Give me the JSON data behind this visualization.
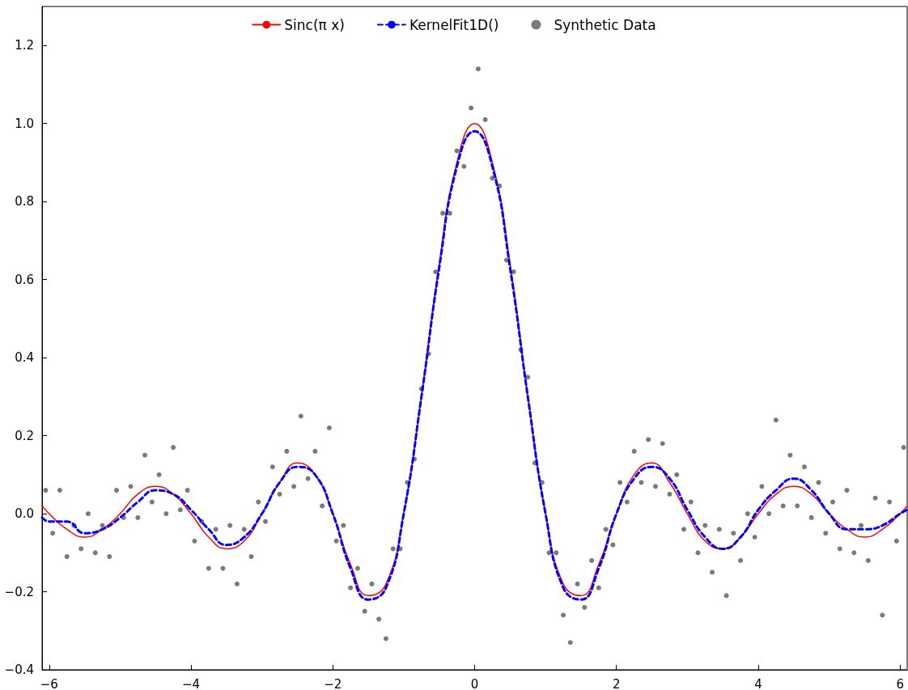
{
  "chart_data": {
    "type": "line",
    "xlim": [
      -6.1,
      6.1
    ],
    "xticks": [
      {
        "value": -6,
        "label": "−6"
      },
      {
        "value": -4,
        "label": "−4"
      },
      {
        "value": -2,
        "label": "−2"
      },
      0,
      2,
      4,
      6
    ],
    "ylim": [
      -0.4,
      1.3
    ],
    "yticks": [
      {
        "value": -0.4,
        "label": "−0.4"
      },
      {
        "value": -0.2,
        "label": "−0.2"
      },
      {
        "value": 0,
        "label": "0.0"
      },
      0.2,
      0.4,
      0.6,
      0.8,
      {
        "value": 1,
        "label": "1.0"
      },
      1.2
    ],
    "grid": false,
    "legend": "top",
    "series": [
      {
        "name": "Sinc(π x)",
        "color": "#ff0000",
        "line_style": "solid",
        "x": [
          -6.1,
          -6,
          -5.75,
          -5.5,
          -5.25,
          -5,
          -4.75,
          -4.5,
          -4.25,
          -4,
          -3.75,
          -3.5,
          -3.25,
          -3,
          -2.75,
          -2.5,
          -2.25,
          -2,
          -1.75,
          -1.5,
          -1.25,
          -1,
          -0.75,
          -0.5,
          -0.25,
          0,
          0.25,
          0.5,
          0.75,
          1,
          1.25,
          1.5,
          1.75,
          2,
          2.25,
          2.5,
          2.75,
          3,
          3.25,
          3.5,
          3.75,
          4,
          4.25,
          4.5,
          4.75,
          5,
          5.25,
          5.5,
          5.75,
          6,
          6.1
        ],
        "values": [
          0.02,
          0,
          -0.04,
          -0.06,
          -0.04,
          0,
          0.05,
          0.07,
          0.05,
          0,
          -0.06,
          -0.09,
          -0.07,
          0,
          0.08,
          0.13,
          0.1,
          0,
          -0.13,
          -0.21,
          -0.18,
          0,
          0.3,
          0.64,
          0.9,
          1,
          0.9,
          0.64,
          0.3,
          0,
          -0.18,
          -0.21,
          -0.13,
          0,
          0.1,
          0.13,
          0.08,
          0,
          -0.07,
          -0.09,
          -0.06,
          0,
          0.05,
          0.07,
          0.05,
          0,
          -0.04,
          -0.06,
          -0.04,
          0,
          0.02
        ]
      },
      {
        "name": "KernelFit1D()",
        "color": "#0000ff",
        "line_style": "dashed",
        "x": [
          -6.1,
          -6,
          -5.75,
          -5.5,
          -5.25,
          -5,
          -4.75,
          -4.5,
          -4.25,
          -4,
          -3.75,
          -3.5,
          -3.25,
          -3,
          -2.75,
          -2.5,
          -2.25,
          -2,
          -1.75,
          -1.5,
          -1.25,
          -1,
          -0.75,
          -0.5,
          -0.25,
          0,
          0.25,
          0.5,
          0.75,
          1,
          1.25,
          1.5,
          1.75,
          2,
          2.25,
          2.5,
          2.75,
          3,
          3.25,
          3.5,
          3.75,
          4,
          4.25,
          4.5,
          4.75,
          5,
          5.25,
          5.5,
          5.75,
          6,
          6.1
        ],
        "values": [
          -0.01,
          -0.02,
          -0.02,
          -0.05,
          -0.04,
          -0.01,
          0.03,
          0.06,
          0.05,
          0.01,
          -0.04,
          -0.08,
          -0.06,
          0,
          0.08,
          0.12,
          0.1,
          0,
          -0.14,
          -0.22,
          -0.19,
          0,
          0.3,
          0.63,
          0.89,
          0.98,
          0.89,
          0.63,
          0.3,
          0,
          -0.19,
          -0.22,
          -0.14,
          0,
          0.09,
          0.12,
          0.09,
          0.01,
          -0.06,
          -0.09,
          -0.06,
          0.01,
          0.06,
          0.09,
          0.06,
          0,
          -0.04,
          -0.04,
          -0.03,
          0,
          0.01
        ]
      },
      {
        "name": "Synthetic Data",
        "type": "scatter",
        "color": "#4d4d4d",
        "marker": "circle",
        "x": [
          -6.05,
          -5.95,
          -5.85,
          -5.75,
          -5.65,
          -5.55,
          -5.45,
          -5.35,
          -5.25,
          -5.15,
          -5.05,
          -4.95,
          -4.85,
          -4.75,
          -4.65,
          -4.55,
          -4.45,
          -4.35,
          -4.25,
          -4.15,
          -4.05,
          -3.95,
          -3.85,
          -3.75,
          -3.65,
          -3.55,
          -3.45,
          -3.35,
          -3.25,
          -3.15,
          -3.05,
          -2.95,
          -2.85,
          -2.75,
          -2.65,
          -2.55,
          -2.45,
          -2.35,
          -2.25,
          -2.15,
          -2.05,
          -1.95,
          -1.85,
          -1.75,
          -1.65,
          -1.55,
          -1.45,
          -1.35,
          -1.25,
          -1.15,
          -1.05,
          -0.95,
          -0.85,
          -0.75,
          -0.65,
          -0.55,
          -0.45,
          -0.35,
          -0.25,
          -0.15,
          -0.05,
          0.05,
          0.15,
          0.25,
          0.35,
          0.45,
          0.55,
          0.65,
          0.75,
          0.85,
          0.95,
          1.05,
          1.15,
          1.25,
          1.35,
          1.45,
          1.55,
          1.65,
          1.75,
          1.85,
          1.95,
          2.05,
          2.15,
          2.25,
          2.35,
          2.45,
          2.55,
          2.65,
          2.75,
          2.85,
          2.95,
          3.05,
          3.15,
          3.25,
          3.35,
          3.45,
          3.55,
          3.65,
          3.75,
          3.85,
          3.95,
          4.05,
          4.15,
          4.25,
          4.35,
          4.45,
          4.55,
          4.65,
          4.75,
          4.85,
          4.95,
          5.05,
          5.15,
          5.25,
          5.35,
          5.45,
          5.55,
          5.65,
          5.75,
          5.85,
          5.95,
          6.05
        ],
        "values": [
          0.06,
          -0.05,
          0.06,
          -0.11,
          -0.03,
          -0.09,
          0,
          -0.1,
          -0.03,
          -0.11,
          0.06,
          -0.01,
          0.07,
          -0.01,
          0.15,
          0.03,
          0.1,
          0,
          0.17,
          0.01,
          0.06,
          -0.07,
          -0.02,
          -0.14,
          -0.04,
          -0.14,
          -0.03,
          -0.18,
          -0.04,
          -0.11,
          0.03,
          -0.02,
          0.12,
          0.05,
          0.16,
          0.07,
          0.25,
          0.09,
          0.16,
          0.02,
          0.22,
          -0.07,
          -0.03,
          -0.19,
          -0.14,
          -0.25,
          -0.18,
          -0.27,
          -0.32,
          -0.09,
          -0.09,
          0.08,
          0.14,
          0.32,
          0.41,
          0.62,
          0.77,
          0.77,
          0.93,
          0.89,
          1.04,
          1.14,
          1.01,
          0.86,
          0.84,
          0.65,
          0.62,
          0.42,
          0.35,
          0.13,
          0.08,
          -0.1,
          -0.1,
          -0.26,
          -0.33,
          -0.18,
          -0.24,
          -0.12,
          -0.19,
          -0.04,
          -0.08,
          0.08,
          0.03,
          0.16,
          0.08,
          0.19,
          0.07,
          0.18,
          0.05,
          0.1,
          -0.04,
          0.03,
          -0.1,
          -0.03,
          -0.15,
          -0.04,
          -0.21,
          -0.05,
          -0.12,
          0,
          -0.06,
          0.07,
          0,
          0.24,
          0.02,
          0.15,
          0.02,
          0.12,
          -0.01,
          0.08,
          -0.05,
          0.03,
          -0.09,
          0.06,
          -0.1,
          -0.03,
          -0.12,
          0.04,
          -0.26,
          0.03,
          -0.07,
          0.17
        ]
      }
    ]
  }
}
